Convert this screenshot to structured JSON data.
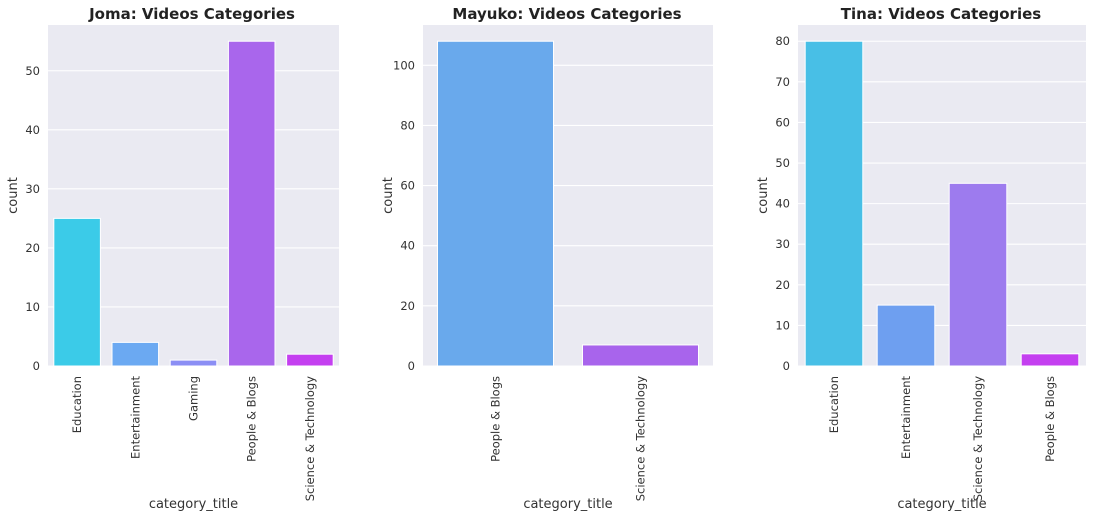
{
  "chart_data": [
    {
      "type": "bar",
      "title": "Joma: Videos Categories",
      "xlabel": "category_title",
      "ylabel": "count",
      "categories": [
        "Education",
        "Entertainment",
        "Gaming",
        "People & Blogs",
        "Science & Technology"
      ],
      "values": [
        25,
        4,
        1,
        55,
        2
      ],
      "colors": [
        "#3bcbe8",
        "#6ba9f2",
        "#8b8ef4",
        "#a966ec",
        "#c43ff0"
      ],
      "yticks": [
        0,
        10,
        20,
        30,
        40,
        50
      ],
      "ylim": [
        0,
        57.75
      ],
      "grid": true
    },
    {
      "type": "bar",
      "title": "Mayuko: Videos Categories",
      "xlabel": "category_title",
      "ylabel": "count",
      "categories": [
        "People & Blogs",
        "Science & Technology"
      ],
      "values": [
        108,
        7
      ],
      "colors": [
        "#69a9ec",
        "#a864ec"
      ],
      "yticks": [
        0,
        20,
        40,
        60,
        80,
        100
      ],
      "ylim": [
        0,
        113.4
      ],
      "grid": true
    },
    {
      "type": "bar",
      "title": "Tina: Videos Categories",
      "xlabel": "category_title",
      "ylabel": "count",
      "categories": [
        "Education",
        "Entertainment",
        "Science & Technology",
        "People & Blogs"
      ],
      "values": [
        80,
        15,
        45,
        3
      ],
      "colors": [
        "#48bfe6",
        "#6e9ff0",
        "#9d7bee",
        "#c43ff0"
      ],
      "yticks": [
        0,
        10,
        20,
        30,
        40,
        50,
        60,
        70,
        80
      ],
      "ylim": [
        0,
        84
      ],
      "grid": true
    }
  ]
}
